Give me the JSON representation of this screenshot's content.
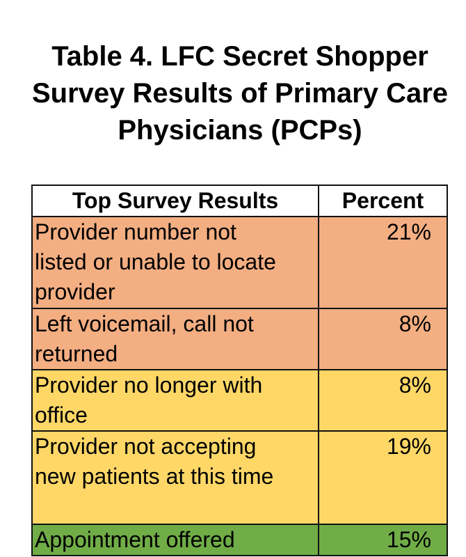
{
  "title": "Table 4. LFC Secret Shopper Survey Results of Primary Care Physicians (PCPs)",
  "table": {
    "headers": [
      "Top Survey Results",
      "Percent"
    ],
    "rows": [
      {
        "result": "Provider number not listed or unable to locate provider",
        "percent": "21%",
        "color": "#f3ae82"
      },
      {
        "result": "Left voicemail, call not returned",
        "percent": "8%",
        "color": "#f3ae82"
      },
      {
        "result": "Provider no longer with office",
        "percent": "8%",
        "color": "#fed767"
      },
      {
        "result": "Provider not accepting new patients at this time",
        "percent": "19%",
        "color": "#fed767"
      },
      {
        "result": "Appointment offered",
        "percent": "15%",
        "color": "#70ad47"
      }
    ]
  }
}
